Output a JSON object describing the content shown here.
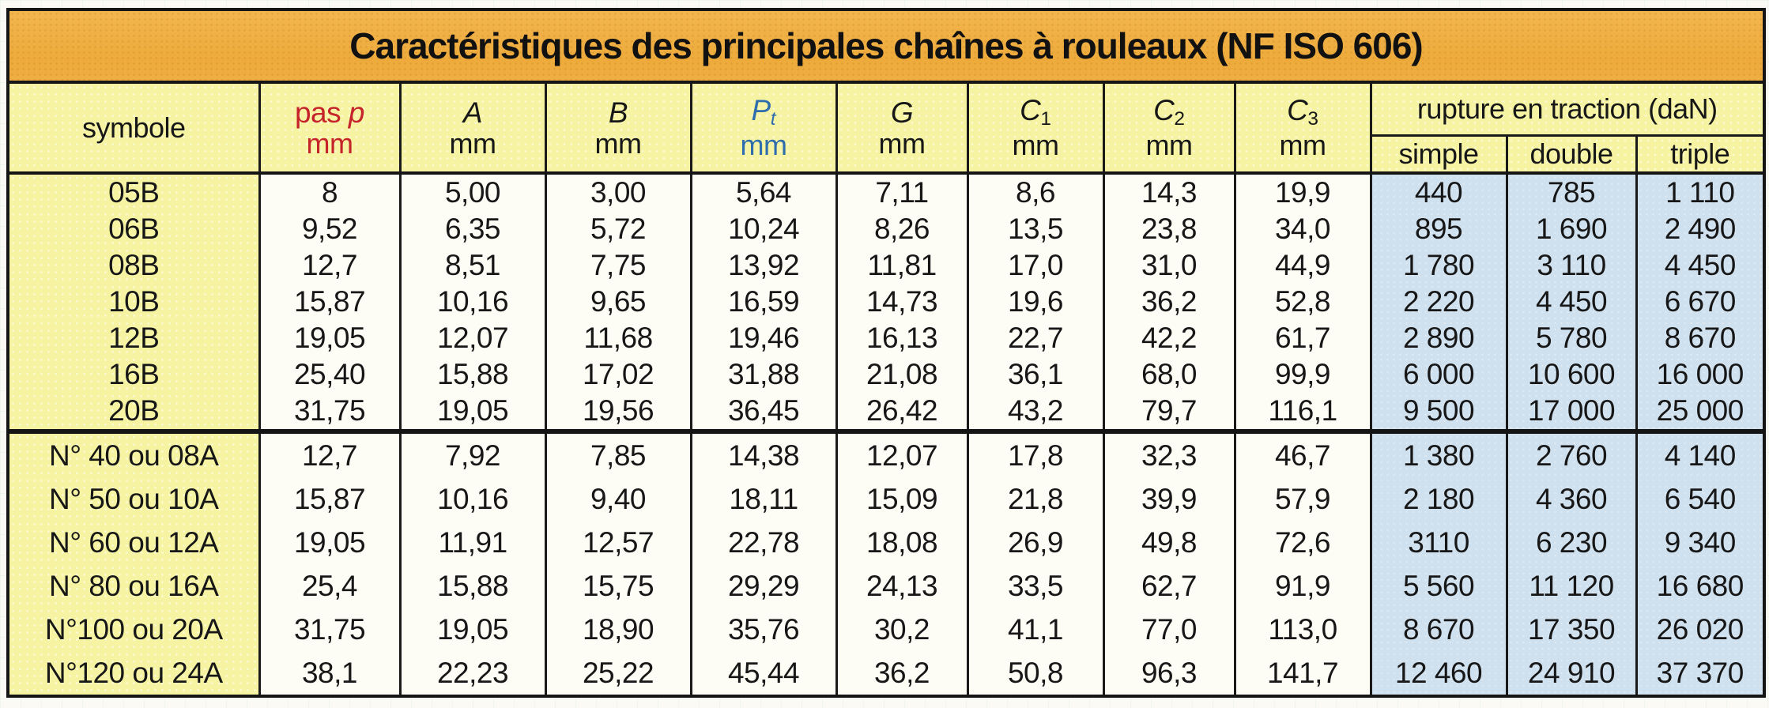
{
  "title": "Caractéristiques des principales chaînes à rouleaux (NF ISO 606)",
  "header": {
    "symbol_label": "symbole",
    "columns": [
      {
        "prefix": "pas ",
        "base": "p",
        "sub": "",
        "unit": "mm",
        "color": "#c5242a"
      },
      {
        "prefix": "",
        "base": "A",
        "sub": "",
        "unit": "mm",
        "color": "#171717"
      },
      {
        "prefix": "",
        "base": "B",
        "sub": "",
        "unit": "mm",
        "color": "#171717"
      },
      {
        "prefix": "",
        "base": "P",
        "sub": "t",
        "unit": "mm",
        "color": "#2f6dad"
      },
      {
        "prefix": "",
        "base": "G",
        "sub": "",
        "unit": "mm",
        "color": "#171717"
      },
      {
        "prefix": "",
        "base": "C",
        "sub": "1",
        "unit": "mm",
        "color": "#171717"
      },
      {
        "prefix": "",
        "base": "C",
        "sub": "2",
        "unit": "mm",
        "color": "#171717"
      },
      {
        "prefix": "",
        "base": "C",
        "sub": "3",
        "unit": "mm",
        "color": "#171717"
      }
    ],
    "rupture_label": "rupture en traction (daN)",
    "rupture_sub": [
      "simple",
      "double",
      "triple"
    ]
  },
  "sections": [
    {
      "name": "series-B",
      "rows": [
        [
          "05B",
          "8",
          "5,00",
          "3,00",
          "5,64",
          "7,11",
          "8,6",
          "14,3",
          "19,9",
          "440",
          "785",
          "1 110"
        ],
        [
          "06B",
          "9,52",
          "6,35",
          "5,72",
          "10,24",
          "8,26",
          "13,5",
          "23,8",
          "34,0",
          "895",
          "1 690",
          "2 490"
        ],
        [
          "08B",
          "12,7",
          "8,51",
          "7,75",
          "13,92",
          "11,81",
          "17,0",
          "31,0",
          "44,9",
          "1 780",
          "3 110",
          "4 450"
        ],
        [
          "10B",
          "15,87",
          "10,16",
          "9,65",
          "16,59",
          "14,73",
          "19,6",
          "36,2",
          "52,8",
          "2 220",
          "4 450",
          "6 670"
        ],
        [
          "12B",
          "19,05",
          "12,07",
          "11,68",
          "19,46",
          "16,13",
          "22,7",
          "42,2",
          "61,7",
          "2 890",
          "5 780",
          "8 670"
        ],
        [
          "16B",
          "25,40",
          "15,88",
          "17,02",
          "31,88",
          "21,08",
          "36,1",
          "68,0",
          "99,9",
          "6 000",
          "10 600",
          "16 000"
        ],
        [
          "20B",
          "31,75",
          "19,05",
          "19,56",
          "36,45",
          "26,42",
          "43,2",
          "79,7",
          "116,1",
          "9 500",
          "17 000",
          "25 000"
        ]
      ]
    },
    {
      "name": "series-A",
      "rows": [
        [
          "N° 40 ou 08A",
          "12,7",
          "7,92",
          "7,85",
          "14,38",
          "12,07",
          "17,8",
          "32,3",
          "46,7",
          "1 380",
          "2 760",
          "4 140"
        ],
        [
          "N° 50 ou 10A",
          "15,87",
          "10,16",
          "9,40",
          "18,11",
          "15,09",
          "21,8",
          "39,9",
          "57,9",
          "2 180",
          "4 360",
          "6 540"
        ],
        [
          "N° 60 ou 12A",
          "19,05",
          "11,91",
          "12,57",
          "22,78",
          "18,08",
          "26,9",
          "49,8",
          "72,6",
          "3110",
          "6 230",
          "9 340"
        ],
        [
          "N° 80 ou 16A",
          "25,4",
          "15,88",
          "15,75",
          "29,29",
          "24,13",
          "33,5",
          "62,7",
          "91,9",
          "5 560",
          "11 120",
          "16 680"
        ],
        [
          "N°100 ou 20A",
          "31,75",
          "19,05",
          "18,90",
          "35,76",
          "30,2",
          "41,1",
          "77,0",
          "113,0",
          "8 670",
          "17 350",
          "26 020"
        ],
        [
          "N°120 ou 24A",
          "38,1",
          "22,23",
          "25,22",
          "45,44",
          "36,2",
          "50,8",
          "96,3",
          "141,7",
          "12 460",
          "24 910",
          "37 370"
        ]
      ]
    }
  ],
  "colors": {
    "title_band": "#efad40",
    "header_yellow": "#f6f4a3",
    "cell_white": "#fdfcf5",
    "rupture_blue": "#cfe0ee",
    "accent_red": "#c5242a",
    "accent_blue": "#2f6dad",
    "border_black": "#1a1a1a"
  }
}
